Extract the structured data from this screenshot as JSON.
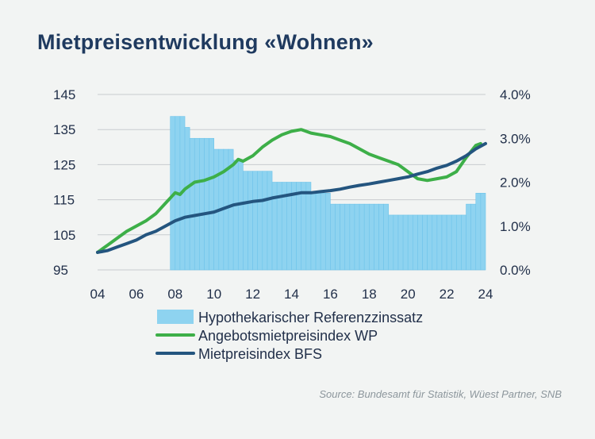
{
  "title": "Mietpreisentwicklung «Wohnen»",
  "source": "Source: Bundesamt für Statistik, Wüest Partner, SNB",
  "colors": {
    "background": "#f2f4f3",
    "grid": "#c8cccf",
    "bars": "#8ed3f0",
    "bar_edge": "#6fc4ea",
    "green": "#3daf48",
    "navy": "#24557f",
    "title": "#1f3a5f"
  },
  "chart_data": {
    "type": "bar+line",
    "title": "Mietpreisentwicklung «Wohnen»",
    "x": {
      "range": [
        2004,
        2024
      ],
      "ticks": [
        2004,
        2006,
        2008,
        2010,
        2012,
        2014,
        2016,
        2018,
        2020,
        2022,
        2024
      ],
      "tick_labels": [
        "04",
        "06",
        "08",
        "10",
        "12",
        "14",
        "16",
        "18",
        "20",
        "22",
        "24"
      ]
    },
    "y_left": {
      "range": [
        95,
        145
      ],
      "ticks": [
        145,
        135,
        125,
        115,
        105,
        95
      ],
      "tick_labels": [
        "145",
        "135",
        "125",
        "115",
        "105",
        "95"
      ]
    },
    "y_right": {
      "range": [
        0,
        4
      ],
      "ticks": [
        4,
        3,
        2,
        1,
        0
      ],
      "tick_labels": [
        "4.0%",
        "3.0%",
        "2.0%",
        "1.0%",
        "0.0%"
      ]
    },
    "grid": true,
    "legend": {
      "position": "bottom",
      "entries": [
        {
          "label": "Hypothekarischer Referenzzinssatz",
          "kind": "bar",
          "color": "#8ed3f0"
        },
        {
          "label": "Angebotsmietpreisindex WP",
          "kind": "line",
          "color": "#3daf48"
        },
        {
          "label": "Mietpreisindex BFS",
          "kind": "line",
          "color": "#24557f"
        }
      ]
    },
    "series": [
      {
        "name": "Hypothekarischer Referenzzinssatz",
        "kind": "bar",
        "axis": "right",
        "unit": "%",
        "periods": [
          {
            "start": 2007.75,
            "end": 2008.5,
            "value": 3.5
          },
          {
            "start": 2008.5,
            "end": 2008.75,
            "value": 3.25
          },
          {
            "start": 2008.75,
            "end": 2010.0,
            "value": 3.0
          },
          {
            "start": 2010.0,
            "end": 2011.0,
            "value": 2.75
          },
          {
            "start": 2011.0,
            "end": 2011.5,
            "value": 2.5
          },
          {
            "start": 2011.5,
            "end": 2013.0,
            "value": 2.25
          },
          {
            "start": 2013.0,
            "end": 2015.0,
            "value": 2.0
          },
          {
            "start": 2015.0,
            "end": 2016.0,
            "value": 1.75
          },
          {
            "start": 2016.0,
            "end": 2019.0,
            "value": 1.5
          },
          {
            "start": 2019.0,
            "end": 2023.0,
            "value": 1.25
          },
          {
            "start": 2023.0,
            "end": 2023.5,
            "value": 1.5
          },
          {
            "start": 2023.5,
            "end": 2024.0,
            "value": 1.75
          }
        ]
      },
      {
        "name": "Angebotsmietpreisindex WP",
        "kind": "line",
        "axis": "left",
        "x": [
          2004.0,
          2004.5,
          2005.0,
          2005.5,
          2006.0,
          2006.5,
          2007.0,
          2007.5,
          2008.0,
          2008.25,
          2008.5,
          2009.0,
          2009.5,
          2010.0,
          2010.5,
          2011.0,
          2011.25,
          2011.5,
          2012.0,
          2012.5,
          2013.0,
          2013.5,
          2014.0,
          2014.5,
          2014.75,
          2015.0,
          2015.5,
          2016.0,
          2016.5,
          2017.0,
          2017.5,
          2018.0,
          2018.5,
          2019.0,
          2019.5,
          2020.0,
          2020.5,
          2021.0,
          2021.5,
          2022.0,
          2022.5,
          2023.0,
          2023.5,
          2023.75
        ],
        "values": [
          100,
          102,
          104,
          106,
          107.5,
          109,
          111,
          114,
          117,
          116.5,
          118,
          120,
          120.5,
          121.5,
          123,
          125,
          126.5,
          126,
          127.5,
          130,
          132,
          133.5,
          134.5,
          135,
          134.5,
          134,
          133.5,
          133,
          132,
          131,
          129.5,
          128,
          127,
          126,
          125,
          123,
          121,
          120.5,
          121,
          121.5,
          123,
          127,
          130.5,
          131
        ],
        "color": "#3daf48"
      },
      {
        "name": "Mietpreisindex BFS",
        "kind": "line",
        "axis": "left",
        "x": [
          2004.0,
          2004.5,
          2005.0,
          2005.5,
          2006.0,
          2006.5,
          2007.0,
          2007.5,
          2008.0,
          2008.5,
          2009.0,
          2009.5,
          2010.0,
          2010.5,
          2011.0,
          2011.5,
          2012.0,
          2012.5,
          2013.0,
          2013.5,
          2014.0,
          2014.5,
          2015.0,
          2015.5,
          2016.0,
          2016.5,
          2017.0,
          2017.5,
          2018.0,
          2018.5,
          2019.0,
          2019.5,
          2020.0,
          2020.5,
          2021.0,
          2021.5,
          2022.0,
          2022.5,
          2023.0,
          2023.5,
          2024.0
        ],
        "values": [
          100,
          100.5,
          101.5,
          102.5,
          103.5,
          105,
          106,
          107.5,
          109,
          110,
          110.5,
          111,
          111.5,
          112.5,
          113.5,
          114,
          114.5,
          114.8,
          115.5,
          116,
          116.5,
          117,
          117,
          117.3,
          117.6,
          118,
          118.6,
          119.1,
          119.5,
          120,
          120.5,
          121,
          121.5,
          122.3,
          123,
          124,
          124.8,
          126,
          127.5,
          129.5,
          131
        ]
      }
    ]
  }
}
